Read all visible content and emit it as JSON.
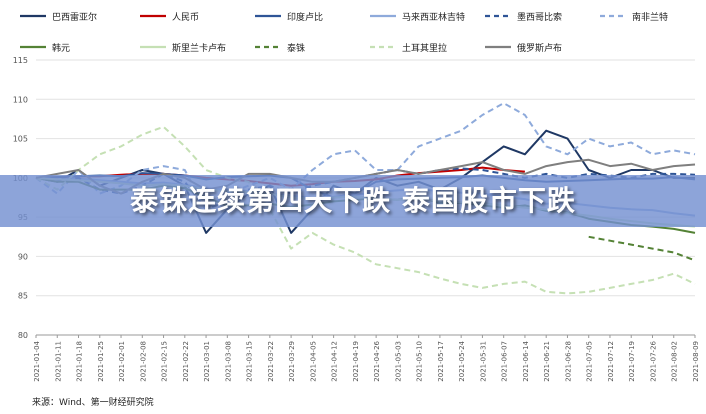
{
  "headline": "泰铢连续第四天下跌 泰国股市下跌",
  "source": "来源：Wind、第一财经研究院",
  "chart_data": {
    "type": "line",
    "ylim": [
      80,
      115
    ],
    "yticks": [
      "80",
      "85",
      "90",
      "95",
      "100",
      "105",
      "110",
      "115"
    ],
    "x": [
      "2021-01-04",
      "2021-01-11",
      "2021-01-18",
      "2021-01-25",
      "2021-02-01",
      "2021-02-08",
      "2021-02-15",
      "2021-02-22",
      "2021-03-01",
      "2021-03-08",
      "2021-03-15",
      "2021-03-22",
      "2021-03-29",
      "2021-04-05",
      "2021-04-12",
      "2021-04-19",
      "2021-04-26",
      "2021-05-03",
      "2021-05-10",
      "2021-05-17",
      "2021-05-24",
      "2021-05-31",
      "2021-06-07",
      "2021-06-14",
      "2021-06-21",
      "2021-06-28",
      "2021-07-05",
      "2021-07-12",
      "2021-07-19",
      "2021-07-26",
      "2021-08-02",
      "2021-08-09"
    ],
    "series": [
      {
        "name": "巴西雷亚尔",
        "color": "#1f3864",
        "dash": "solid",
        "values": [
          100,
          99.5,
          101,
          99,
          100,
          101,
          100.5,
          99,
          93,
          96,
          98,
          99,
          93,
          96,
          99,
          98,
          100,
          99,
          99.5,
          98.5,
          100,
          102,
          104,
          103,
          106,
          105,
          101,
          100,
          101,
          101,
          100,
          100
        ]
      },
      {
        "name": "人民币",
        "color": "#c00000",
        "dash": "solid",
        "values": [
          100,
          100.1,
          100.2,
          100.2,
          100.4,
          100.5,
          100.5,
          100.3,
          100,
          99.8,
          99.6,
          99.3,
          99,
          99.2,
          99.5,
          99.6,
          99.8,
          100.3,
          100.6,
          100.8,
          101,
          101.3,
          101,
          100.8,
          null,
          null,
          null,
          null,
          null,
          null,
          null,
          null
        ]
      },
      {
        "name": "印度卢比",
        "color": "#2f5597",
        "dash": "solid",
        "values": [
          100,
          100.1,
          100.2,
          100.3,
          100.2,
          100.6,
          100.5,
          100.3,
          99.8,
          100.1,
          100.2,
          100.3,
          100,
          98.5,
          97.5,
          98,
          99.5,
          99.8,
          99.9,
          100,
          100.1,
          100.3,
          100,
          99.7,
          99.5,
          99.6,
          99.7,
          99.8,
          99.9,
          99.9,
          100.1,
          99.8
        ]
      },
      {
        "name": "马来西亚林吉特",
        "color": "#8eaadb",
        "dash": "solid",
        "values": [
          100,
          99.8,
          99.9,
          99.7,
          99.5,
          99.3,
          99.4,
          99.1,
          98.7,
          98.5,
          98.3,
          98,
          97.7,
          97.5,
          97.6,
          97.8,
          98.2,
          98.4,
          98.6,
          98.3,
          98.1,
          98,
          97.6,
          97.3,
          96.7,
          96.8,
          96.5,
          96.2,
          96,
          95.9,
          95.5,
          95.2
        ]
      },
      {
        "name": "墨西哥比索",
        "color": "#2f5597",
        "dash": "dashed",
        "values": [
          100,
          99.5,
          100,
          98.5,
          98,
          99,
          100.5,
          99.5,
          96,
          97,
          98.5,
          99,
          98,
          99,
          99.5,
          100,
          100.5,
          101,
          100.5,
          101,
          101.2,
          101,
          100.5,
          100,
          100.5,
          100,
          100.5,
          100.3,
          100,
          100.5,
          100.5,
          100.4
        ]
      },
      {
        "name": "南非兰特",
        "color": "#8eaadb",
        "dash": "dashed",
        "values": [
          100,
          98,
          101,
          98,
          99,
          101,
          101.5,
          101,
          96,
          98,
          99,
          100,
          98.5,
          101,
          103,
          103.5,
          101,
          101,
          104,
          105,
          106,
          108,
          109.5,
          108,
          104,
          103,
          105,
          104,
          104.5,
          103,
          103.5,
          103
        ]
      },
      {
        "name": "韩元",
        "color": "#548235",
        "dash": "solid",
        "values": [
          100,
          99.5,
          99.5,
          98.5,
          98.5,
          98.5,
          99,
          98.7,
          97.5,
          96.5,
          96.5,
          96.7,
          96.3,
          96.6,
          97,
          97.2,
          97.4,
          97.2,
          97.6,
          96.8,
          96.8,
          96.5,
          96.2,
          96.5,
          95.8,
          95.6,
          94.8,
          94.4,
          94,
          93.8,
          93.5,
          93
        ]
      },
      {
        "name": "斯里兰卡卢布",
        "color": "#c5e0b4",
        "dash": "solid",
        "values": [
          100,
          99.8,
          99.7,
          99.5,
          99.3,
          99,
          99.2,
          99,
          98.5,
          98.3,
          98.2,
          98,
          97.5,
          97.3,
          97.5,
          97.6,
          97.4,
          97.2,
          97.3,
          97.1,
          96.9,
          96.8,
          96.5,
          96.2,
          96,
          95.5,
          95.2,
          94.8,
          94.5,
          94.2,
          94,
          93.8
        ]
      },
      {
        "name": "泰铢",
        "color": "#548235",
        "dash": "dashed",
        "values": [
          null,
          null,
          null,
          null,
          null,
          null,
          null,
          null,
          null,
          null,
          null,
          null,
          null,
          null,
          null,
          null,
          null,
          null,
          null,
          null,
          null,
          null,
          null,
          null,
          null,
          null,
          92.5,
          92,
          91.5,
          91,
          90.5,
          89.5
        ]
      },
      {
        "name": "土耳其里拉",
        "color": "#c5e0b4",
        "dash": "dashed",
        "values": [
          100,
          98.5,
          101,
          103,
          104,
          105.5,
          106.5,
          104,
          101,
          100,
          99.5,
          96,
          91,
          93,
          91.5,
          90.5,
          89,
          88.5,
          88,
          87.2,
          86.5,
          86,
          86.5,
          86.8,
          85.5,
          85.3,
          85.5,
          86,
          86.5,
          87,
          87.8,
          86.5
        ]
      },
      {
        "name": "俄罗斯卢布",
        "color": "#7f7f7f",
        "dash": "solid",
        "values": [
          100,
          100.5,
          101,
          99,
          98,
          99.5,
          100.5,
          100,
          98.5,
          99,
          100.5,
          100.5,
          100,
          99.5,
          99.5,
          100,
          100.5,
          101,
          100.5,
          101,
          101.5,
          102,
          101,
          100.5,
          101.5,
          102,
          102.3,
          101.5,
          101.8,
          101,
          101.5,
          101.7
        ]
      }
    ]
  }
}
